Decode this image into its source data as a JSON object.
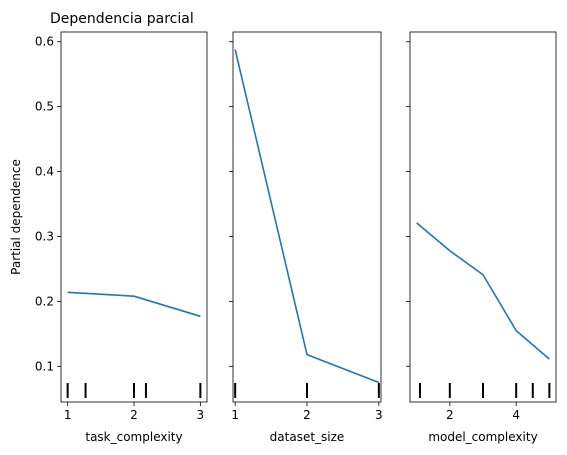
{
  "title": "Dependencia parcial",
  "ylabel": "Partial dependence",
  "line_color": "#1f77b4",
  "chart_data": {
    "type": "line",
    "title": "Dependencia parcial",
    "ylabel": "Partial dependence",
    "ylim": [
      0.045,
      0.615
    ],
    "yticks": [
      0.1,
      0.2,
      0.3,
      0.4,
      0.5,
      0.6
    ],
    "grid": false,
    "panels": [
      {
        "xlabel": "task_complexity",
        "xlim": [
          0.9,
          3.1
        ],
        "xticks": [
          1,
          2,
          3
        ],
        "x": [
          1,
          2,
          3
        ],
        "y": [
          0.214,
          0.208,
          0.177
        ],
        "rug": [
          1,
          1.27,
          2,
          2.18,
          3
        ]
      },
      {
        "xlabel": "dataset_size",
        "xlim": [
          0.97,
          3.03
        ],
        "xticks": [
          1,
          2,
          3
        ],
        "x": [
          1,
          2,
          3
        ],
        "y": [
          0.588,
          0.118,
          0.075
        ],
        "rug": [
          1,
          2,
          3
        ]
      },
      {
        "xlabel": "model_complexity",
        "xlim": [
          0.8,
          5.2
        ],
        "xticks": [
          2,
          4
        ],
        "x": [
          1,
          2,
          3,
          4,
          5
        ],
        "y": [
          0.321,
          0.278,
          0.241,
          0.155,
          0.111
        ],
        "rug": [
          1.1,
          2,
          3,
          4,
          4.5,
          5
        ]
      }
    ]
  }
}
